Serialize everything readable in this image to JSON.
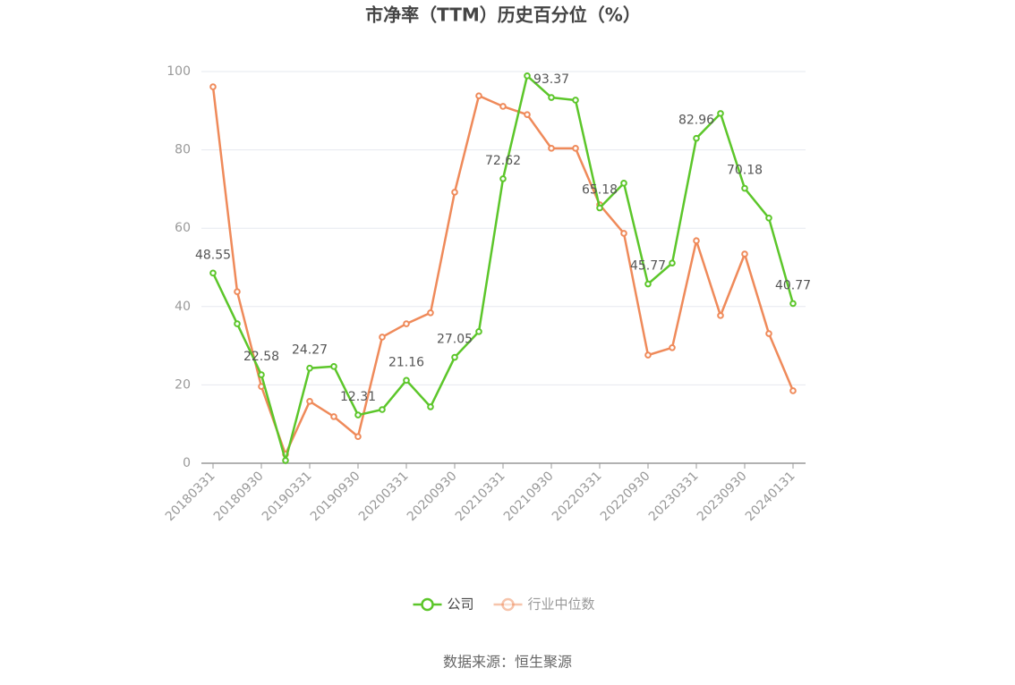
{
  "chart_data": {
    "type": "line",
    "title": "市净率（TTM）历史百分位（%）",
    "source": "数据来源：恒生聚源",
    "categories": [
      "20180331",
      null,
      "20180930",
      null,
      "20190331",
      null,
      "20190930",
      null,
      "20200331",
      null,
      "20200930",
      null,
      "20210331",
      null,
      "20210930",
      null,
      "20220331",
      null,
      "20220930",
      null,
      "20230331",
      null,
      "20230930",
      null,
      "20240131"
    ],
    "series": [
      {
        "name": "公司",
        "color": "#5cc62a",
        "values": [
          48.55,
          35.6,
          22.58,
          0.7,
          24.27,
          24.7,
          12.31,
          13.7,
          21.16,
          14.4,
          27.05,
          33.6,
          72.62,
          98.9,
          93.37,
          92.7,
          65.18,
          71.5,
          45.77,
          51.1,
          82.96,
          89.3,
          70.18,
          62.6,
          40.77
        ],
        "value_labels": [
          "48.55",
          null,
          "22.58",
          null,
          "24.27",
          null,
          "12.31",
          null,
          "21.16",
          null,
          "27.05",
          null,
          "72.62",
          null,
          "93.37",
          null,
          "65.18",
          null,
          "45.77",
          null,
          "82.96",
          null,
          "70.18",
          null,
          "40.77"
        ]
      },
      {
        "name": "行业中位数",
        "color": "#ef8a5a",
        "values": [
          96.1,
          43.8,
          19.6,
          2.3,
          15.8,
          11.9,
          6.8,
          32.2,
          35.6,
          38.4,
          69.2,
          93.8,
          91.1,
          89.0,
          80.4,
          80.4,
          66.0,
          58.7,
          27.6,
          29.5,
          56.8,
          37.7,
          53.4,
          33.1,
          18.5
        ]
      }
    ],
    "ylim": [
      0,
      100
    ],
    "yticks": [
      0,
      20,
      40,
      60,
      80,
      100
    ],
    "grid": true
  }
}
